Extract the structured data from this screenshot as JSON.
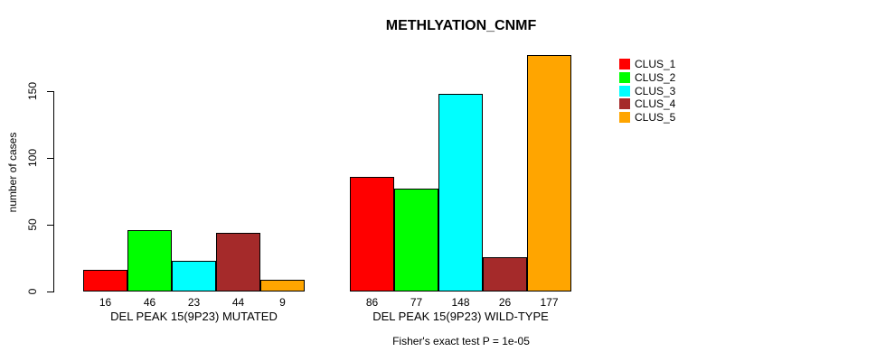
{
  "title": "METHLYATION_CNMF",
  "chart_data": {
    "type": "bar",
    "title": "METHLYATION_CNMF",
    "xlabel": "",
    "ylabel": "number of cases",
    "annotation": "Fisher's exact test P = 1e-05",
    "yticks": [
      0,
      50,
      100,
      150
    ],
    "ylim": [
      0,
      177
    ],
    "grid": false,
    "legend_position": "right",
    "bar_border_color": "#000000",
    "groups": [
      {
        "label": "DEL PEAK 15(9P23) MUTATED",
        "values": [
          16,
          46,
          23,
          44,
          9
        ]
      },
      {
        "label": "DEL PEAK 15(9P23) WILD-TYPE",
        "values": [
          86,
          77,
          148,
          26,
          177
        ]
      }
    ],
    "series": [
      {
        "name": "CLUS_1",
        "color": "#FF0000"
      },
      {
        "name": "CLUS_2",
        "color": "#00FF00"
      },
      {
        "name": "CLUS_3",
        "color": "#00FFFF"
      },
      {
        "name": "CLUS_4",
        "color": "#A52A2A"
      },
      {
        "name": "CLUS_5",
        "color": "#FFA500"
      }
    ]
  }
}
